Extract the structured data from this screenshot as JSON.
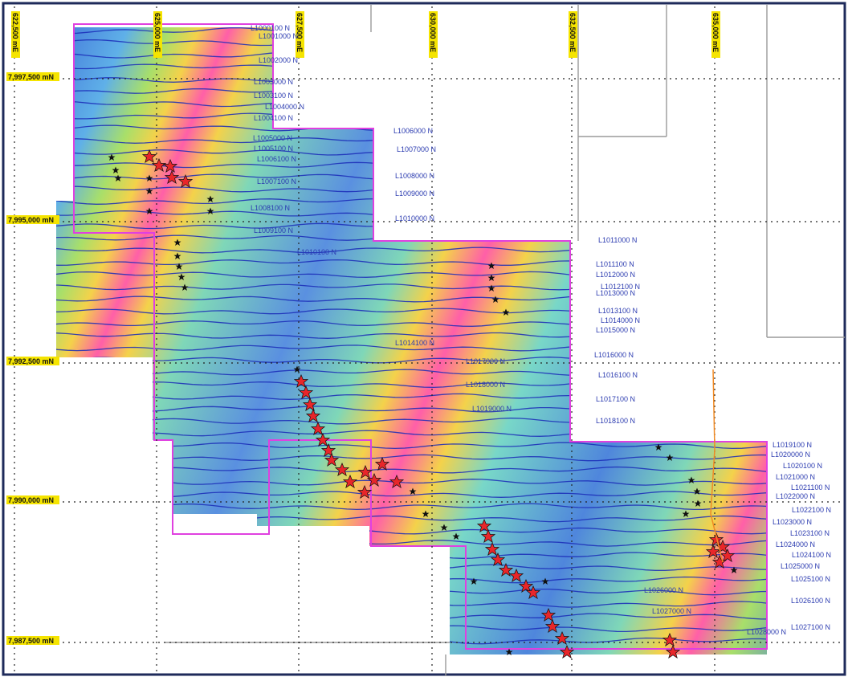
{
  "easting_labels": [
    "622,500 mE",
    "625,000 mE",
    "627,500 mE",
    "630,000 mE",
    "632,500 mE",
    "635,000 mE"
  ],
  "northing_labels": [
    "7,997,500 mN",
    "7,995,000 mN",
    "7,992,500 mN",
    "7,990,000 mN",
    "7,987,500 mN"
  ],
  "line_labels": [
    {
      "text": "L1000100 N",
      "side": "r"
    },
    {
      "text": "L1001000 N",
      "side": "r"
    },
    {
      "text": "L1002000 N",
      "side": "r"
    },
    {
      "text": "L1003000 N",
      "side": "r"
    },
    {
      "text": "L1003100 N",
      "side": "r"
    },
    {
      "text": "L1004000 N",
      "side": "r"
    },
    {
      "text": "L1004100 N",
      "side": "r"
    },
    {
      "text": "L1005000 N",
      "side": "r"
    },
    {
      "text": "L1005100 N",
      "side": "r"
    },
    {
      "text": "L1006000 N",
      "side": "r"
    },
    {
      "text": "L1006100 N",
      "side": "r"
    },
    {
      "text": "L1007000 N",
      "side": "r"
    },
    {
      "text": "L1007100 N",
      "side": "r"
    },
    {
      "text": "L1008000 N",
      "side": "r"
    },
    {
      "text": "L1008100 N",
      "side": "r"
    },
    {
      "text": "L1009000 N",
      "side": "r"
    },
    {
      "text": "L1009100 N",
      "side": "r"
    },
    {
      "text": "L1010000 N",
      "side": "r"
    },
    {
      "text": "L1010100 N",
      "side": "r"
    },
    {
      "text": "L1011000 N",
      "side": "r"
    },
    {
      "text": "L1011100 N",
      "side": "r"
    },
    {
      "text": "L1012000 N",
      "side": "r"
    },
    {
      "text": "L1012100 N",
      "side": "r"
    },
    {
      "text": "L1013000 N",
      "side": "r"
    },
    {
      "text": "L1013100 N",
      "side": "r"
    },
    {
      "text": "L1014000 N",
      "side": "r"
    },
    {
      "text": "L1014100 N",
      "side": "r"
    },
    {
      "text": "L1015000 N",
      "side": "r"
    },
    {
      "text": "L1016000 N",
      "side": "r"
    },
    {
      "text": "L1016100 N",
      "side": "r"
    },
    {
      "text": "L1017000 N",
      "side": "r"
    },
    {
      "text": "L1017100 N",
      "side": "r"
    },
    {
      "text": "L1018000 N",
      "side": "r"
    },
    {
      "text": "L1018100 N",
      "side": "r"
    },
    {
      "text": "L1019000 N",
      "side": "r"
    },
    {
      "text": "L1019100 N",
      "side": "r"
    },
    {
      "text": "L1020000 N",
      "side": "r"
    },
    {
      "text": "L1020100 N",
      "side": "r"
    },
    {
      "text": "L1021000 N",
      "side": "r"
    },
    {
      "text": "L1021100 N",
      "side": "r"
    },
    {
      "text": "L1022000 N",
      "side": "r"
    },
    {
      "text": "L1022100 N",
      "side": "r"
    },
    {
      "text": "L1023000 N",
      "side": "r"
    },
    {
      "text": "L1023100 N",
      "side": "r"
    },
    {
      "text": "L1024000 N",
      "side": "r"
    },
    {
      "text": "L1024100 N",
      "side": "r"
    },
    {
      "text": "L1025000 N",
      "side": "r"
    },
    {
      "text": "L1025100 N",
      "side": "r"
    },
    {
      "text": "L1026000 N",
      "side": "r"
    },
    {
      "text": "L1026100 N",
      "side": "r"
    },
    {
      "text": "L1027000 N",
      "side": "r"
    },
    {
      "text": "L1027100 N",
      "side": "r"
    },
    {
      "text": "L1028000 N",
      "side": "r"
    }
  ],
  "colors": {
    "boundary": "#e040e0",
    "label": "#2b3bb0",
    "highlight": "#f5e400",
    "profile": "#1a2bb8",
    "star_large": "#e8262a",
    "star_small": "#111111"
  }
}
